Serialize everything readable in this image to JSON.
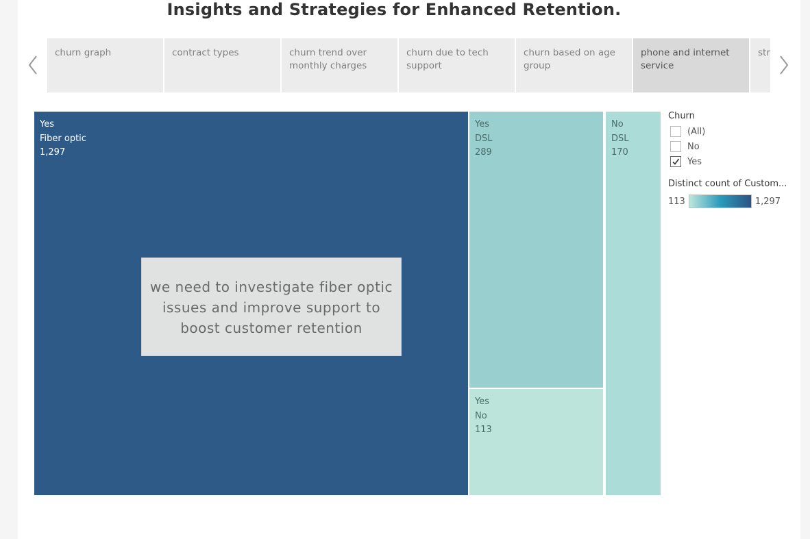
{
  "title": "Insights and Strategies for Enhanced Retention.",
  "tabs": [
    {
      "label": "churn graph"
    },
    {
      "label": "contract types"
    },
    {
      "label": "churn trend over monthly charges"
    },
    {
      "label": "churn due to tech support"
    },
    {
      "label": "churn based on age group"
    },
    {
      "label": "phone  and internet service",
      "active": true
    },
    {
      "label": "streaming tv"
    }
  ],
  "treemap": {
    "cells": [
      {
        "churn": "Yes",
        "service": "Fiber optic",
        "count": "1,297",
        "value": 1297,
        "color": "#2e5a87"
      },
      {
        "churn": "Yes",
        "service": "DSL",
        "count": "289",
        "value": 289,
        "color": "#99d0cf"
      },
      {
        "churn": "No",
        "service": "DSL",
        "count": "170",
        "value": 170,
        "color": "#abdcd7"
      },
      {
        "churn": "Yes",
        "service": "No",
        "count": "113",
        "value": 113,
        "color": "#bce4da"
      }
    ]
  },
  "annotation": "we need to investigate fiber optic issues and improve support to boost customer retention",
  "legend": {
    "filter_title": "Churn",
    "options": [
      {
        "label": "(All)",
        "checked": false
      },
      {
        "label": "No",
        "checked": false
      },
      {
        "label": "Yes",
        "checked": true
      }
    ],
    "measure_title": "Distinct count of Custom...",
    "min_label": "113",
    "max_label": "1,297",
    "ramp_colors": [
      "#bde6dc",
      "#2a9bbb",
      "#2b5383"
    ]
  },
  "icons": {
    "prev": "chevron-left-icon",
    "next": "chevron-right-icon",
    "check": "checkmark-icon"
  }
}
